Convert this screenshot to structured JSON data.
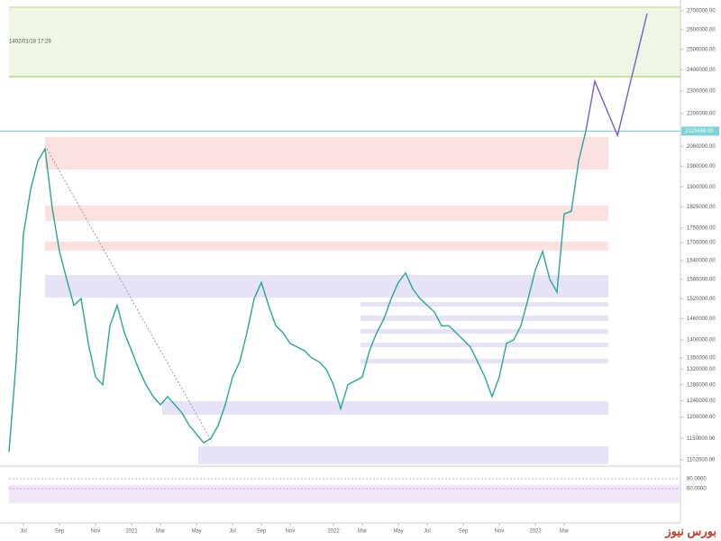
{
  "chart_data": {
    "type": "line",
    "timestamp": "1402/01/18 17:29",
    "watermark": "بورس نیوز",
    "color": "#26a69a",
    "x": [
      0,
      1,
      2,
      3,
      4,
      5,
      6,
      7,
      8,
      9,
      10,
      11,
      12,
      13,
      14,
      15,
      16,
      17,
      18,
      19,
      20,
      21,
      22,
      23,
      24,
      25,
      26,
      27,
      28,
      29,
      30,
      31,
      32,
      33,
      34,
      35,
      36,
      37,
      38,
      39,
      40,
      41,
      42,
      43,
      44,
      45,
      46,
      47,
      48,
      49,
      50,
      51,
      52,
      53,
      54,
      55,
      56,
      57,
      58,
      59,
      60,
      61,
      62,
      63,
      64,
      65,
      66,
      67,
      68,
      69,
      70,
      71,
      72,
      73,
      74,
      75,
      76,
      77,
      78,
      79,
      80
    ],
    "values": [
      1120000,
      1343000,
      1728000,
      1890000,
      2000000,
      2050000,
      1820000,
      1670000,
      1580000,
      1500000,
      1520000,
      1390000,
      1300000,
      1280000,
      1440000,
      1500000,
      1420000,
      1370000,
      1320000,
      1280000,
      1250000,
      1230000,
      1250000,
      1230000,
      1210000,
      1180000,
      1160000,
      1140000,
      1150000,
      1180000,
      1230000,
      1300000,
      1340000,
      1420000,
      1520000,
      1570000,
      1500000,
      1440000,
      1420000,
      1390000,
      1380000,
      1370000,
      1350000,
      1340000,
      1320000,
      1280000,
      1220000,
      1280000,
      1290000,
      1300000,
      1370000,
      1420000,
      1460000,
      1520000,
      1570000,
      1600000,
      1550000,
      1520000,
      1500000,
      1480000,
      1440000,
      1440000,
      1420000,
      1400000,
      1380000,
      1340000,
      1300000,
      1250000,
      1300000,
      1390000,
      1400000,
      1440000,
      1520000,
      1610000,
      1670000,
      1580000,
      1540000,
      1800000,
      1810000,
      2000000,
      2123466
    ],
    "projection": {
      "color": "#7b5cc4",
      "x": [
        80,
        81.25,
        84.4,
        88.5
      ],
      "values": [
        2123466,
        2346000,
        2105000,
        2685000
      ]
    },
    "current_price": {
      "value": 2123466,
      "label": "2123466.00"
    },
    "xlim": [
      0,
      90
    ],
    "xticks": [
      {
        "value": 2,
        "label": "Jul"
      },
      {
        "value": 7,
        "label": "Sep"
      },
      {
        "value": 12,
        "label": "Nov"
      },
      {
        "value": 17,
        "label": "2021"
      },
      {
        "value": 21,
        "label": "Mar"
      },
      {
        "value": 26,
        "label": "May"
      },
      {
        "value": 31,
        "label": "Jul"
      },
      {
        "value": 35,
        "label": "Sep"
      },
      {
        "value": 39,
        "label": "Nov"
      },
      {
        "value": 45,
        "label": "2022"
      },
      {
        "value": 49,
        "label": "Mar"
      },
      {
        "value": 54,
        "label": "May"
      },
      {
        "value": 58,
        "label": "Jul"
      },
      {
        "value": 63,
        "label": "Sep"
      },
      {
        "value": 68,
        "label": "Nov"
      },
      {
        "value": 73,
        "label": "2023"
      },
      {
        "value": 77,
        "label": "Mar"
      }
    ],
    "log_scale": true,
    "ylim": [
      1092000,
      2734000
    ],
    "yticks": [
      {
        "value": 2700000,
        "label": "2700000.00"
      },
      {
        "value": 2600000,
        "label": "2600000.00"
      },
      {
        "value": 2500000,
        "label": "2500000.00"
      },
      {
        "value": 2400000,
        "label": "2400000.00"
      },
      {
        "value": 2300000,
        "label": "2300000.00"
      },
      {
        "value": 2200000,
        "label": "2200000.00"
      },
      {
        "value": 2060000,
        "label": "2060000.00"
      },
      {
        "value": 1980000,
        "label": "1980000.00"
      },
      {
        "value": 1900000,
        "label": "1900000.00"
      },
      {
        "value": 1825000,
        "label": "1825000.00"
      },
      {
        "value": 1750000,
        "label": "1750000.00"
      },
      {
        "value": 1700000,
        "label": "1700000.00"
      },
      {
        "value": 1640000,
        "label": "1640000.00"
      },
      {
        "value": 1580000,
        "label": "1580000.00"
      },
      {
        "value": 1520000,
        "label": "1520000.00"
      },
      {
        "value": 1460000,
        "label": "1460000.00"
      },
      {
        "value": 1400000,
        "label": "1400000.00"
      },
      {
        "value": 1350000,
        "label": "1350000.00"
      },
      {
        "value": 1320000,
        "label": "1320000.00"
      },
      {
        "value": 1280000,
        "label": "1280000.00"
      },
      {
        "value": 1240000,
        "label": "1240000.00"
      },
      {
        "value": 1200000,
        "label": "1200000.00"
      },
      {
        "value": 1150000,
        "label": "1150000.00"
      },
      {
        "value": 1102000,
        "label": "1102000.00"
      }
    ],
    "rsi_ticks": [
      {
        "value": 80,
        "label": "80.0000"
      },
      {
        "value": 60,
        "label": "60.0000"
      }
    ]
  }
}
